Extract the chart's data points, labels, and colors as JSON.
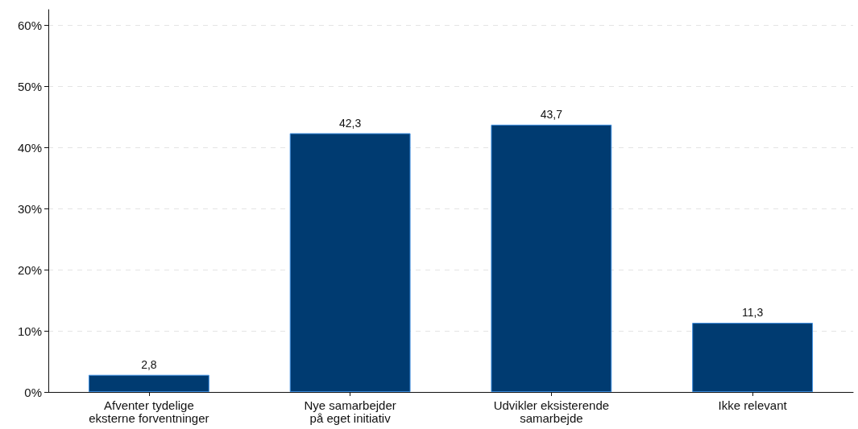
{
  "chart_data": {
    "type": "bar",
    "categories": [
      "Afventer tydelige\neksterne forventninger",
      "Nye samarbejder\npå eget initiativ",
      "Udvikler eksisterende\nsamarbejde",
      "Ikke relevant"
    ],
    "values": [
      2.8,
      42.3,
      43.7,
      11.3
    ],
    "value_labels": [
      "2,8",
      "42,3",
      "43,7",
      "11,3"
    ],
    "color": "#003b71",
    "ylim": [
      0,
      62.5
    ],
    "yticks": [
      {
        "value": 0,
        "label": "0%"
      },
      {
        "value": 10,
        "label": "10%"
      },
      {
        "value": 20,
        "label": "20%"
      },
      {
        "value": 30,
        "label": "30%"
      },
      {
        "value": 40,
        "label": "40%"
      },
      {
        "value": 50,
        "label": "50%"
      },
      {
        "value": 60,
        "label": "60%"
      }
    ],
    "grid": "y"
  }
}
